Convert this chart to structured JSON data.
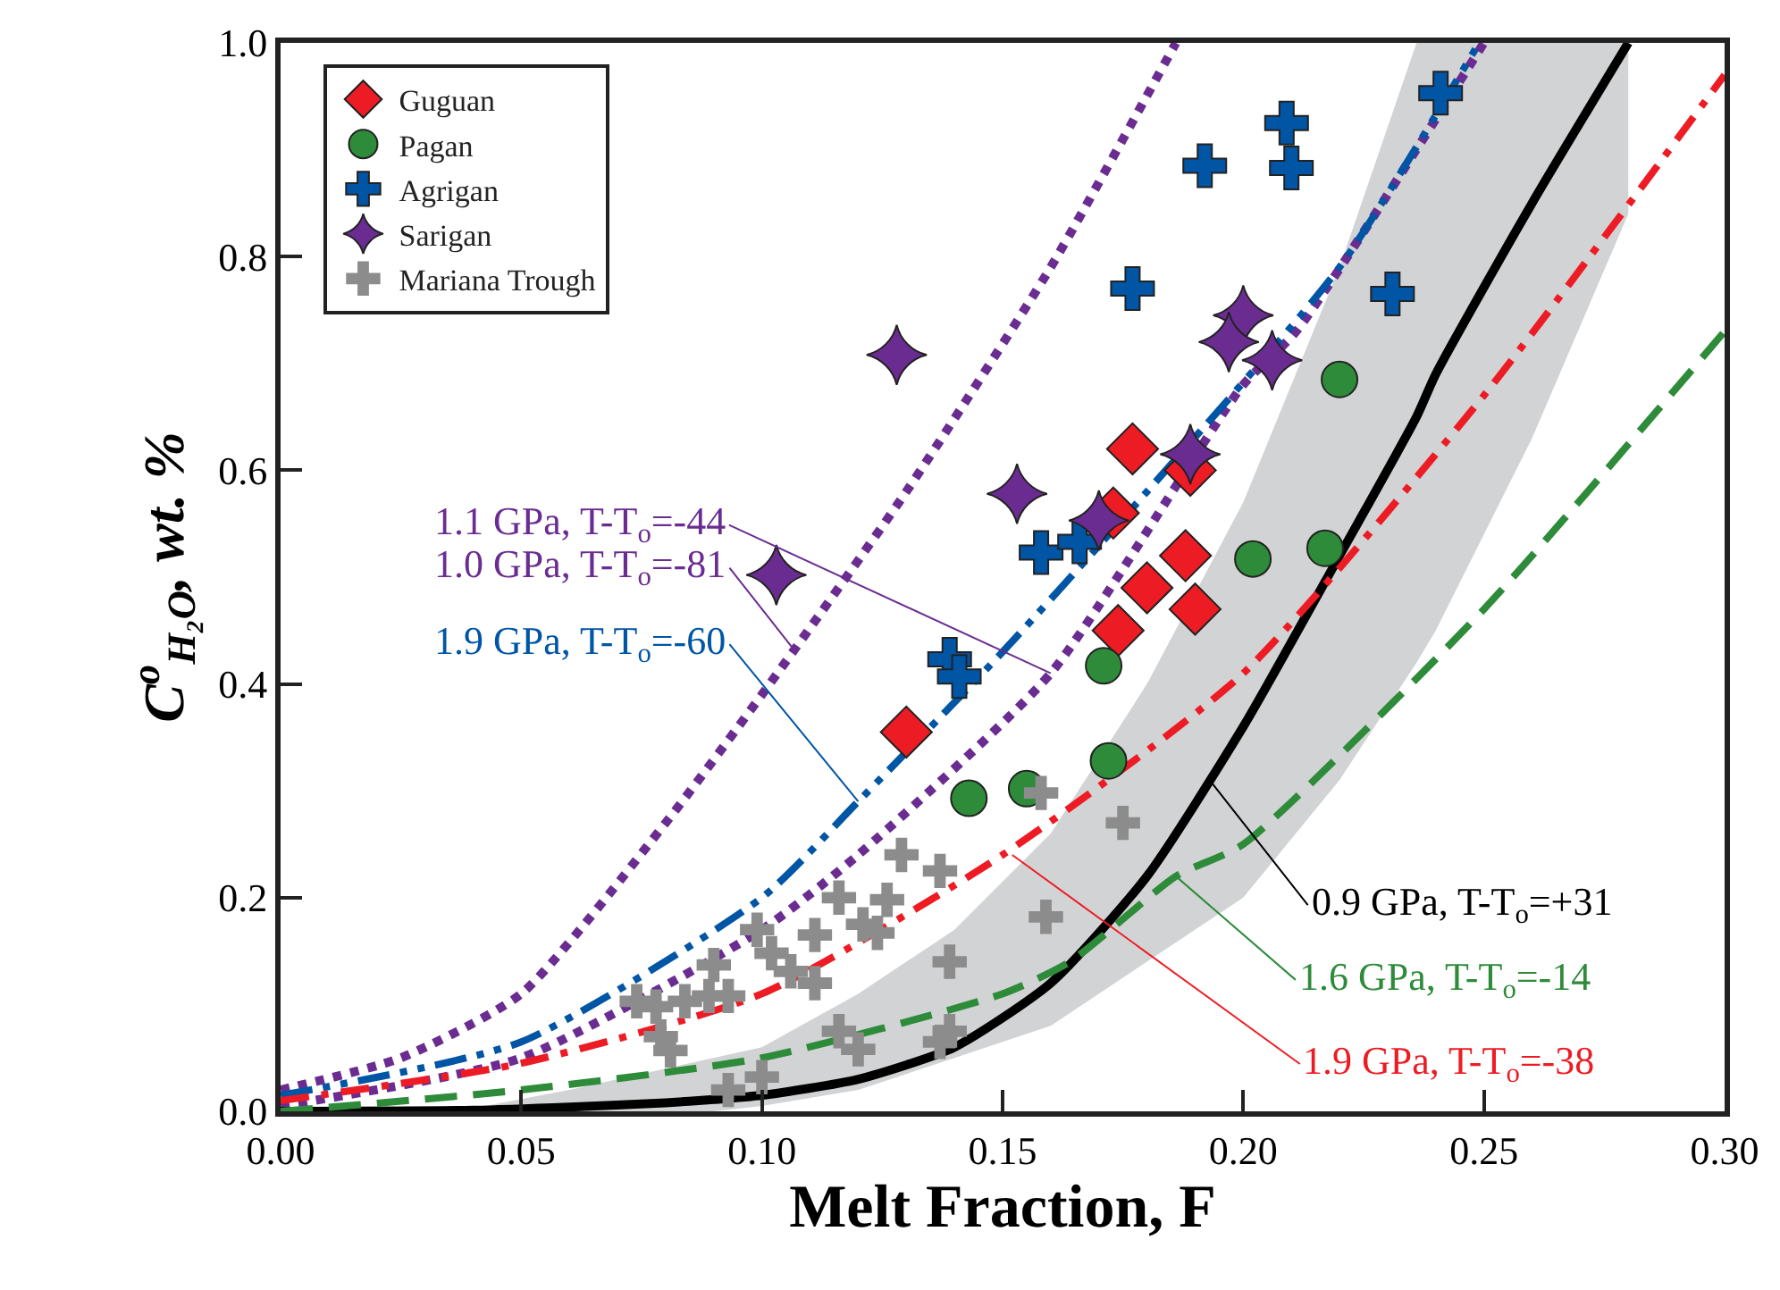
{
  "chart_data": {
    "type": "scatter",
    "xlabel": "Melt Fraction, F",
    "ylabel": "C$^{o}$$_{H₂O}$, wt. %",
    "xlim": [
      0,
      0.3
    ],
    "ylim": [
      0,
      1.0
    ],
    "xticks": [
      {
        "value": 0,
        "label": "0.00"
      },
      0.05,
      {
        "value": 0.1,
        "label": "0.10"
      },
      0.15,
      {
        "value": 0.2,
        "label": "0.20"
      },
      0.25,
      {
        "value": 0.3,
        "label": "0.30"
      }
    ],
    "yticks": [
      {
        "value": 0,
        "label": "0.0"
      },
      0.2,
      0.4,
      0.6,
      0.8,
      {
        "value": 1.0,
        "label": "1.0"
      }
    ],
    "legend": "top left",
    "series": [
      {
        "type": "line",
        "color": "#6a2c91",
        "line_style": "dotted",
        "marker": "none",
        "x": [
          0,
          0.05,
          0.1,
          0.12,
          0.16,
          0.2,
          0.211,
          0.25
        ],
        "values": [
          0.005,
          0.05,
          0.17,
          0.24,
          0.41,
          0.68,
          0.73,
          1.0
        ]
      },
      {
        "type": "line",
        "color": "#6a2c91",
        "line_style": "dotted",
        "marker": "none",
        "x": [
          0,
          0.025,
          0.05,
          0.08,
          0.1,
          0.13,
          0.16,
          0.186
        ],
        "values": [
          0.02,
          0.05,
          0.11,
          0.27,
          0.39,
          0.58,
          0.79,
          1.0
        ]
      },
      {
        "type": "line",
        "color": "#0055a5",
        "line_style": "dashdotdot",
        "marker": "none",
        "x": [
          0,
          0.05,
          0.1,
          0.12,
          0.15,
          0.18,
          0.22,
          0.249
        ],
        "values": [
          0.015,
          0.065,
          0.2,
          0.29,
          0.43,
          0.58,
          0.79,
          1.0
        ]
      },
      {
        "type": "line",
        "color": "#000000",
        "line_style": "solid",
        "marker": "none",
        "x": [
          0,
          0.04,
          0.06,
          0.08,
          0.09,
          0.1,
          0.12,
          0.14,
          0.16,
          0.18,
          0.2,
          0.22,
          0.236,
          0.24,
          0.26,
          0.28
        ],
        "values": [
          0,
          0.001,
          0.004,
          0.008,
          0.011,
          0.015,
          0.03,
          0.06,
          0.12,
          0.22,
          0.36,
          0.52,
          0.65,
          0.69,
          0.85,
          1.0
        ],
        "upper": [
          0,
          0.003,
          0.02,
          0.04,
          0.05,
          0.06,
          0.11,
          0.17,
          0.26,
          0.4,
          0.57,
          0.79,
          1.0,
          1.0,
          1.0,
          1.0
        ],
        "lower": [
          0,
          0,
          0,
          0,
          0.0,
          0.005,
          0.02,
          0.05,
          0.08,
          0.14,
          0.2,
          0.31,
          0.42,
          0.45,
          0.63,
          0.84
        ]
      },
      {
        "type": "line",
        "color": "#2e8b3a",
        "line_style": "dashed",
        "marker": "none",
        "x": [
          0,
          0.05,
          0.1,
          0.15,
          0.164,
          0.186,
          0.2,
          0.25,
          0.3
        ],
        "values": [
          0,
          0.02,
          0.05,
          0.11,
          0.14,
          0.22,
          0.25,
          0.47,
          0.73
        ]
      },
      {
        "type": "line",
        "color": "#ed1c24",
        "line_style": "dashdot",
        "marker": "none",
        "x": [
          0,
          0.05,
          0.1,
          0.15,
          0.2,
          0.25,
          0.3
        ],
        "values": [
          0.01,
          0.045,
          0.11,
          0.24,
          0.41,
          0.67,
          0.97
        ]
      },
      {
        "name": "Guguan",
        "color": "#ed1c24",
        "marker": "diamond",
        "x": [
          0.13,
          0.173,
          0.177,
          0.189,
          0.188,
          0.18,
          0.174,
          0.19
        ],
        "values": [
          0.355,
          0.56,
          0.62,
          0.6,
          0.52,
          0.49,
          0.45,
          0.47
        ]
      },
      {
        "name": "Pagan",
        "color": "#2e8b3a",
        "marker": "circle",
        "x": [
          0.143,
          0.155,
          0.171,
          0.172,
          0.202,
          0.217,
          0.22
        ],
        "values": [
          0.293,
          0.302,
          0.417,
          0.328,
          0.517,
          0.527,
          0.685
        ]
      },
      {
        "name": "Agrigan",
        "color": "#0055a5",
        "marker": "cross",
        "x": [
          0.139,
          0.141,
          0.158,
          0.166,
          0.177,
          0.192,
          0.209,
          0.21,
          0.231,
          0.241
        ],
        "values": [
          0.423,
          0.407,
          0.523,
          0.533,
          0.77,
          0.885,
          0.925,
          0.883,
          0.765,
          0.953
        ]
      },
      {
        "name": "Sarigan",
        "color": "#6a2c91",
        "marker": "star",
        "x": [
          0.128,
          0.103,
          0.153,
          0.17,
          0.189,
          0.2,
          0.197,
          0.206
        ],
        "values": [
          0.708,
          0.502,
          0.578,
          0.553,
          0.615,
          0.745,
          0.72,
          0.703
        ]
      },
      {
        "name": "Mariana Trough",
        "color": "#8c8c8c",
        "marker": "cross",
        "x": [
          0.129,
          0.137,
          0.116,
          0.126,
          0.121,
          0.124,
          0.111,
          0.099,
          0.102,
          0.106,
          0.111,
          0.09,
          0.093,
          0.089,
          0.084,
          0.078,
          0.074,
          0.079,
          0.081,
          0.093,
          0.1,
          0.116,
          0.12,
          0.139,
          0.137,
          0.139,
          0.159,
          0.175,
          0.158
        ],
        "values": [
          0.24,
          0.225,
          0.2,
          0.198,
          0.175,
          0.167,
          0.165,
          0.17,
          0.148,
          0.131,
          0.12,
          0.137,
          0.108,
          0.108,
          0.103,
          0.098,
          0.103,
          0.07,
          0.057,
          0.02,
          0.032,
          0.075,
          0.058,
          0.075,
          0.065,
          0.14,
          0.182,
          0.27,
          0.298
        ]
      }
    ],
    "annotations": [
      {
        "text": "1.1 GPa, T-T$_{o}$=-44",
        "x": 0.16,
        "y": 0.41
      },
      {
        "text": "1.0 GPa, T-T$_{o}$=-81",
        "x": 0.107,
        "y": 0.43
      },
      {
        "text": "1.9 GPa, T-T$_{o}$=-60",
        "x": 0.12,
        "y": 0.29
      },
      {
        "text": "0.9 GPa, T-T$_{o}$=+31",
        "x": 0.193,
        "y": 0.31
      },
      {
        "text": "1.6 GPa, T-T$_{o}$=-14",
        "x": 0.186,
        "y": 0.22
      },
      {
        "text": "1.9 GPa, T-T$_{o}$=-38",
        "x": 0.152,
        "y": 0.24
      }
    ]
  }
}
